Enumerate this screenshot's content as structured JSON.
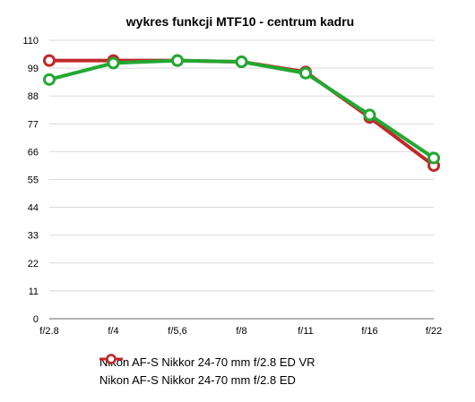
{
  "chart_data": {
    "type": "line",
    "title": "wykres funkcji MTF10 - centrum kadru",
    "xlabel": "",
    "ylabel": "",
    "categories": [
      "f/2.8",
      "f/4",
      "f/5,6",
      "f/8",
      "f/11",
      "f/16",
      "f/22"
    ],
    "ylim": [
      0,
      110
    ],
    "yticks": [
      0,
      11,
      22,
      33,
      44,
      55,
      66,
      77,
      88,
      99,
      110
    ],
    "grid": true,
    "legend_position": "bottom",
    "series": [
      {
        "name": "Nikon AF-S Nikkor 24-70 mm f/2.8 ED",
        "color": "#c0282a",
        "values": [
          102,
          102,
          102,
          101.5,
          97.5,
          79.5,
          60.5
        ]
      },
      {
        "name": "Nikon AF-S Nikkor 24-70 mm f/2.8 ED VR",
        "color": "#22a832",
        "values": [
          94.5,
          101,
          102,
          101.5,
          97,
          80.5,
          63.5
        ]
      }
    ]
  }
}
